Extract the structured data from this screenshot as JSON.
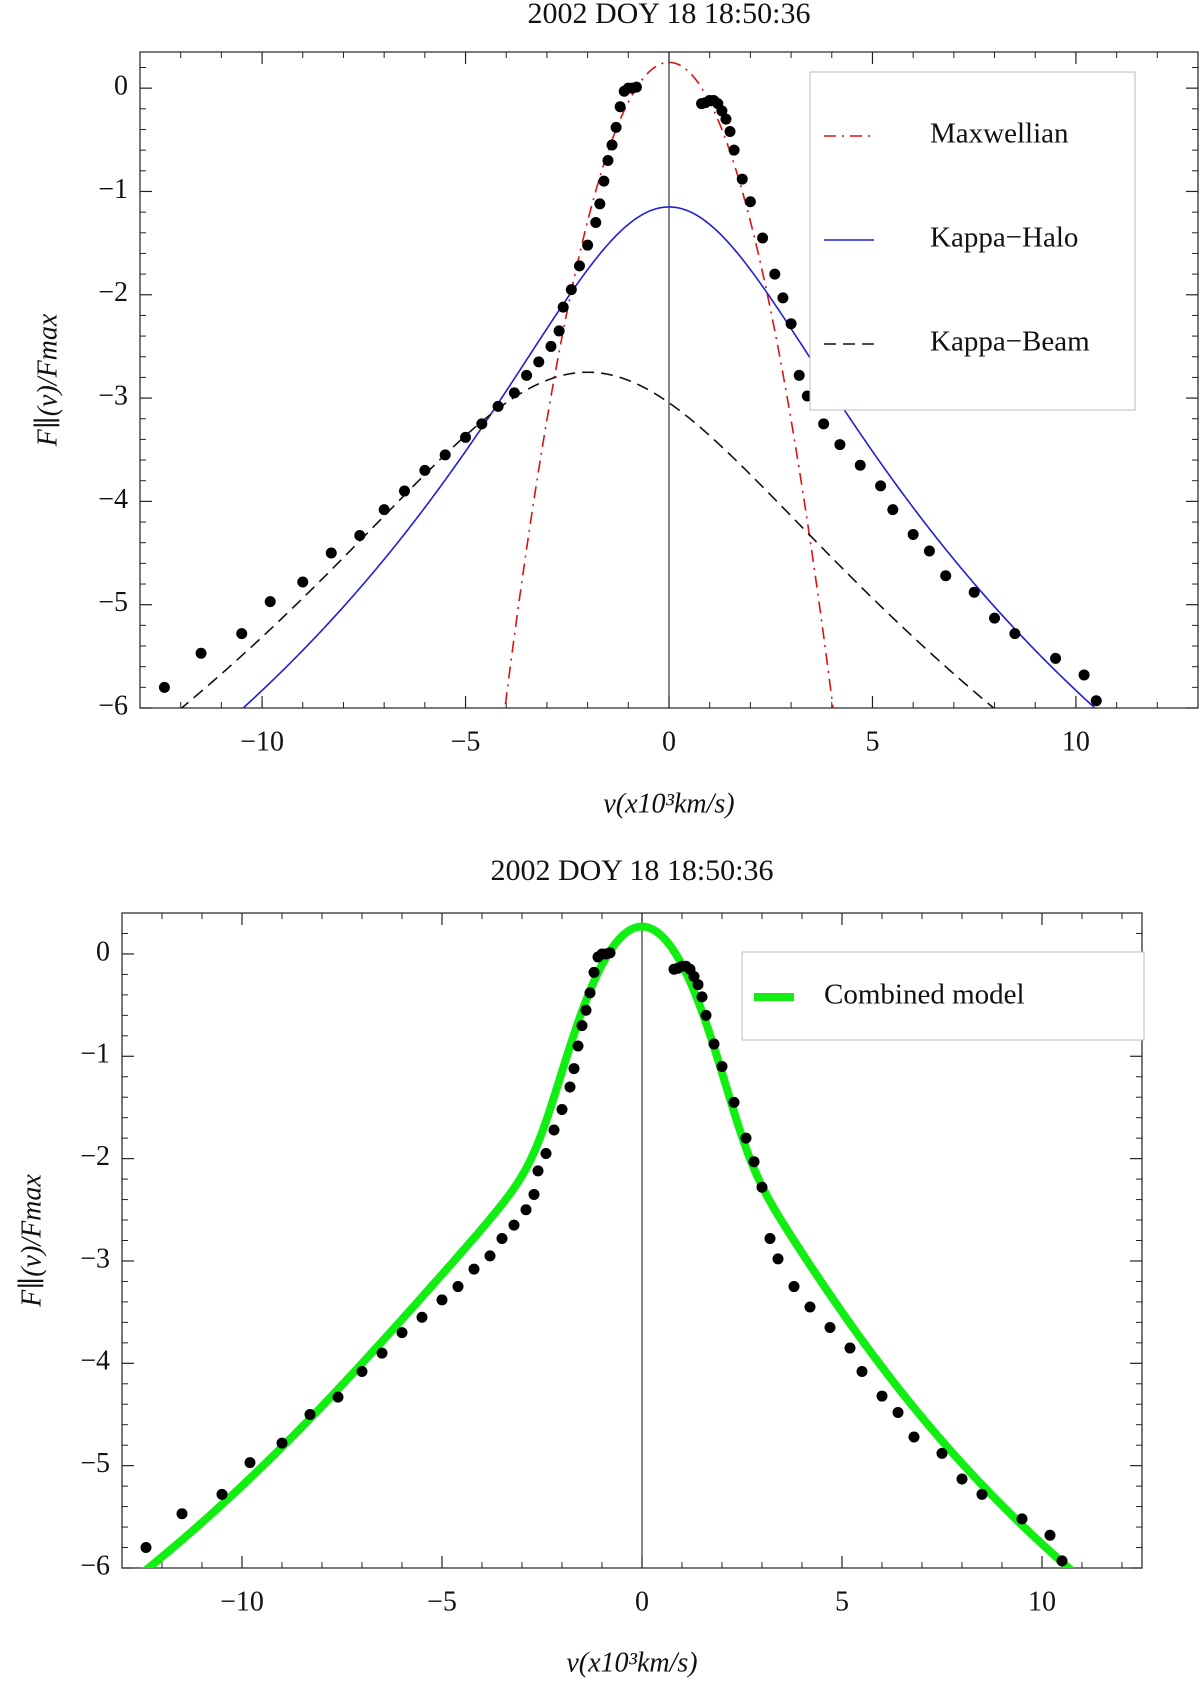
{
  "chart_data": [
    {
      "type": "line",
      "title": "2002 DOY 18 18:50:36",
      "xlabel": "v(x10³km/s)",
      "ylabel": "F∥(v)/Fmax",
      "xlim": [
        -13,
        13
      ],
      "ylim": [
        -6,
        0.35
      ],
      "xticks": [
        -10,
        -5,
        0,
        5,
        10
      ],
      "xtick_labels": [
        "−10",
        "−5",
        "0",
        "5",
        "10"
      ],
      "yticks": [
        0,
        -1,
        -2,
        -3,
        -4,
        -5,
        -6
      ],
      "ytick_labels": [
        "0",
        "−1",
        "−2",
        "−3",
        "−4",
        "−5",
        "−6"
      ],
      "legend": {
        "placement": "top-right",
        "entries": [
          "Maxwellian",
          "Kappa−Halo",
          "Kappa−Beam"
        ]
      },
      "series": [
        {
          "name": "Maxwellian",
          "kind": "gaussian",
          "color": "#dd1111",
          "style": "dashdot",
          "params": {
            "peak": 0.25,
            "center": 0.0,
            "curvature": 0.3845
          }
        },
        {
          "name": "Kappa−Halo",
          "kind": "kappa",
          "color": "#1f1fd6",
          "style": "solid",
          "params": {
            "peak": -1.15,
            "center": 0.0,
            "b": 0.0844,
            "m": 4.8
          }
        },
        {
          "name": "Kappa−Beam",
          "kind": "kappa",
          "color": "#111111",
          "style": "dashed",
          "params": {
            "peak": -2.75,
            "center": -2.0,
            "b": 0.0385,
            "m": 4.75
          }
        },
        {
          "name": "Data",
          "kind": "points",
          "color": "#000000",
          "points": [
            [
              -12.4,
              -5.8
            ],
            [
              -11.5,
              -5.47
            ],
            [
              -10.5,
              -5.28
            ],
            [
              -9.8,
              -4.97
            ],
            [
              -9.0,
              -4.78
            ],
            [
              -8.3,
              -4.5
            ],
            [
              -7.6,
              -4.33
            ],
            [
              -7.0,
              -4.08
            ],
            [
              -6.5,
              -3.9
            ],
            [
              -6.0,
              -3.7
            ],
            [
              -5.5,
              -3.55
            ],
            [
              -5.0,
              -3.38
            ],
            [
              -4.6,
              -3.25
            ],
            [
              -4.2,
              -3.08
            ],
            [
              -3.8,
              -2.95
            ],
            [
              -3.5,
              -2.78
            ],
            [
              -3.2,
              -2.65
            ],
            [
              -2.9,
              -2.5
            ],
            [
              -2.7,
              -2.35
            ],
            [
              -2.6,
              -2.12
            ],
            [
              -2.4,
              -1.95
            ],
            [
              -2.2,
              -1.72
            ],
            [
              -2.0,
              -1.52
            ],
            [
              -1.8,
              -1.3
            ],
            [
              -1.7,
              -1.12
            ],
            [
              -1.6,
              -0.9
            ],
            [
              -1.5,
              -0.7
            ],
            [
              -1.4,
              -0.55
            ],
            [
              -1.3,
              -0.38
            ],
            [
              -1.2,
              -0.18
            ],
            [
              -1.1,
              -0.03
            ],
            [
              -1.0,
              0.0
            ],
            [
              -0.9,
              0.0
            ],
            [
              -0.8,
              0.01
            ],
            [
              0.8,
              -0.15
            ],
            [
              0.9,
              -0.14
            ],
            [
              1.0,
              -0.12
            ],
            [
              1.1,
              -0.12
            ],
            [
              1.2,
              -0.15
            ],
            [
              1.3,
              -0.22
            ],
            [
              1.4,
              -0.3
            ],
            [
              1.5,
              -0.42
            ],
            [
              1.6,
              -0.6
            ],
            [
              1.8,
              -0.88
            ],
            [
              2.0,
              -1.1
            ],
            [
              2.3,
              -1.45
            ],
            [
              2.6,
              -1.8
            ],
            [
              2.8,
              -2.03
            ],
            [
              3.0,
              -2.28
            ],
            [
              3.2,
              -2.78
            ],
            [
              3.4,
              -2.98
            ],
            [
              3.8,
              -3.25
            ],
            [
              4.2,
              -3.45
            ],
            [
              4.7,
              -3.65
            ],
            [
              5.2,
              -3.85
            ],
            [
              5.5,
              -4.08
            ],
            [
              6.0,
              -4.32
            ],
            [
              6.4,
              -4.48
            ],
            [
              6.8,
              -4.72
            ],
            [
              7.5,
              -4.88
            ],
            [
              8.0,
              -5.13
            ],
            [
              8.5,
              -5.28
            ],
            [
              9.5,
              -5.52
            ],
            [
              10.2,
              -5.68
            ],
            [
              10.5,
              -5.93
            ]
          ]
        }
      ]
    },
    {
      "type": "line",
      "title": "2002 DOY 18 18:50:36",
      "xlabel": "v(x10³km/s)",
      "ylabel": "F∥(v)/Fmax",
      "xlim": [
        -13,
        12.5
      ],
      "ylim": [
        -6,
        0.4
      ],
      "xticks": [
        -10,
        -5,
        0,
        5,
        10
      ],
      "xtick_labels": [
        "−10",
        "−5",
        "0",
        "5",
        "10"
      ],
      "yticks": [
        0,
        -1,
        -2,
        -3,
        -4,
        -5,
        -6
      ],
      "ytick_labels": [
        "0",
        "−1",
        "−2",
        "−3",
        "−4",
        "−5",
        "−6"
      ],
      "legend": {
        "placement": "top-right",
        "entries": [
          "Combined model"
        ]
      },
      "series": [
        {
          "name": "Combined model",
          "kind": "combined",
          "color": "#11ee11",
          "style": "thick",
          "components": [
            {
              "kind": "gaussian",
              "params": {
                "peak": 0.25,
                "center": 0.0,
                "curvature": 0.3845
              }
            },
            {
              "kind": "kappa",
              "params": {
                "peak": -1.15,
                "center": 0.0,
                "b": 0.0844,
                "m": 4.8
              }
            },
            {
              "kind": "kappa",
              "params": {
                "peak": -2.75,
                "center": -2.0,
                "b": 0.0385,
                "m": 4.75
              }
            }
          ]
        },
        {
          "name": "Data",
          "kind": "points",
          "color": "#000000",
          "points": [
            [
              -12.4,
              -5.8
            ],
            [
              -11.5,
              -5.47
            ],
            [
              -10.5,
              -5.28
            ],
            [
              -9.8,
              -4.97
            ],
            [
              -9.0,
              -4.78
            ],
            [
              -8.3,
              -4.5
            ],
            [
              -7.6,
              -4.33
            ],
            [
              -7.0,
              -4.08
            ],
            [
              -6.5,
              -3.9
            ],
            [
              -6.0,
              -3.7
            ],
            [
              -5.5,
              -3.55
            ],
            [
              -5.0,
              -3.38
            ],
            [
              -4.6,
              -3.25
            ],
            [
              -4.2,
              -3.08
            ],
            [
              -3.8,
              -2.95
            ],
            [
              -3.5,
              -2.78
            ],
            [
              -3.2,
              -2.65
            ],
            [
              -2.9,
              -2.5
            ],
            [
              -2.7,
              -2.35
            ],
            [
              -2.6,
              -2.12
            ],
            [
              -2.4,
              -1.95
            ],
            [
              -2.2,
              -1.72
            ],
            [
              -2.0,
              -1.52
            ],
            [
              -1.8,
              -1.3
            ],
            [
              -1.7,
              -1.12
            ],
            [
              -1.6,
              -0.9
            ],
            [
              -1.5,
              -0.7
            ],
            [
              -1.4,
              -0.55
            ],
            [
              -1.3,
              -0.38
            ],
            [
              -1.2,
              -0.18
            ],
            [
              -1.1,
              -0.03
            ],
            [
              -1.0,
              0.0
            ],
            [
              -0.9,
              0.0
            ],
            [
              -0.8,
              0.01
            ],
            [
              0.8,
              -0.15
            ],
            [
              0.9,
              -0.14
            ],
            [
              1.0,
              -0.12
            ],
            [
              1.1,
              -0.12
            ],
            [
              1.2,
              -0.15
            ],
            [
              1.3,
              -0.22
            ],
            [
              1.4,
              -0.3
            ],
            [
              1.5,
              -0.42
            ],
            [
              1.6,
              -0.6
            ],
            [
              1.8,
              -0.88
            ],
            [
              2.0,
              -1.1
            ],
            [
              2.3,
              -1.45
            ],
            [
              2.6,
              -1.8
            ],
            [
              2.8,
              -2.03
            ],
            [
              3.0,
              -2.28
            ],
            [
              3.2,
              -2.78
            ],
            [
              3.4,
              -2.98
            ],
            [
              3.8,
              -3.25
            ],
            [
              4.2,
              -3.45
            ],
            [
              4.7,
              -3.65
            ],
            [
              5.2,
              -3.85
            ],
            [
              5.5,
              -4.08
            ],
            [
              6.0,
              -4.32
            ],
            [
              6.4,
              -4.48
            ],
            [
              6.8,
              -4.72
            ],
            [
              7.5,
              -4.88
            ],
            [
              8.0,
              -5.13
            ],
            [
              8.5,
              -5.28
            ],
            [
              9.5,
              -5.52
            ],
            [
              10.2,
              -5.68
            ],
            [
              10.5,
              -5.93
            ]
          ]
        }
      ]
    }
  ]
}
